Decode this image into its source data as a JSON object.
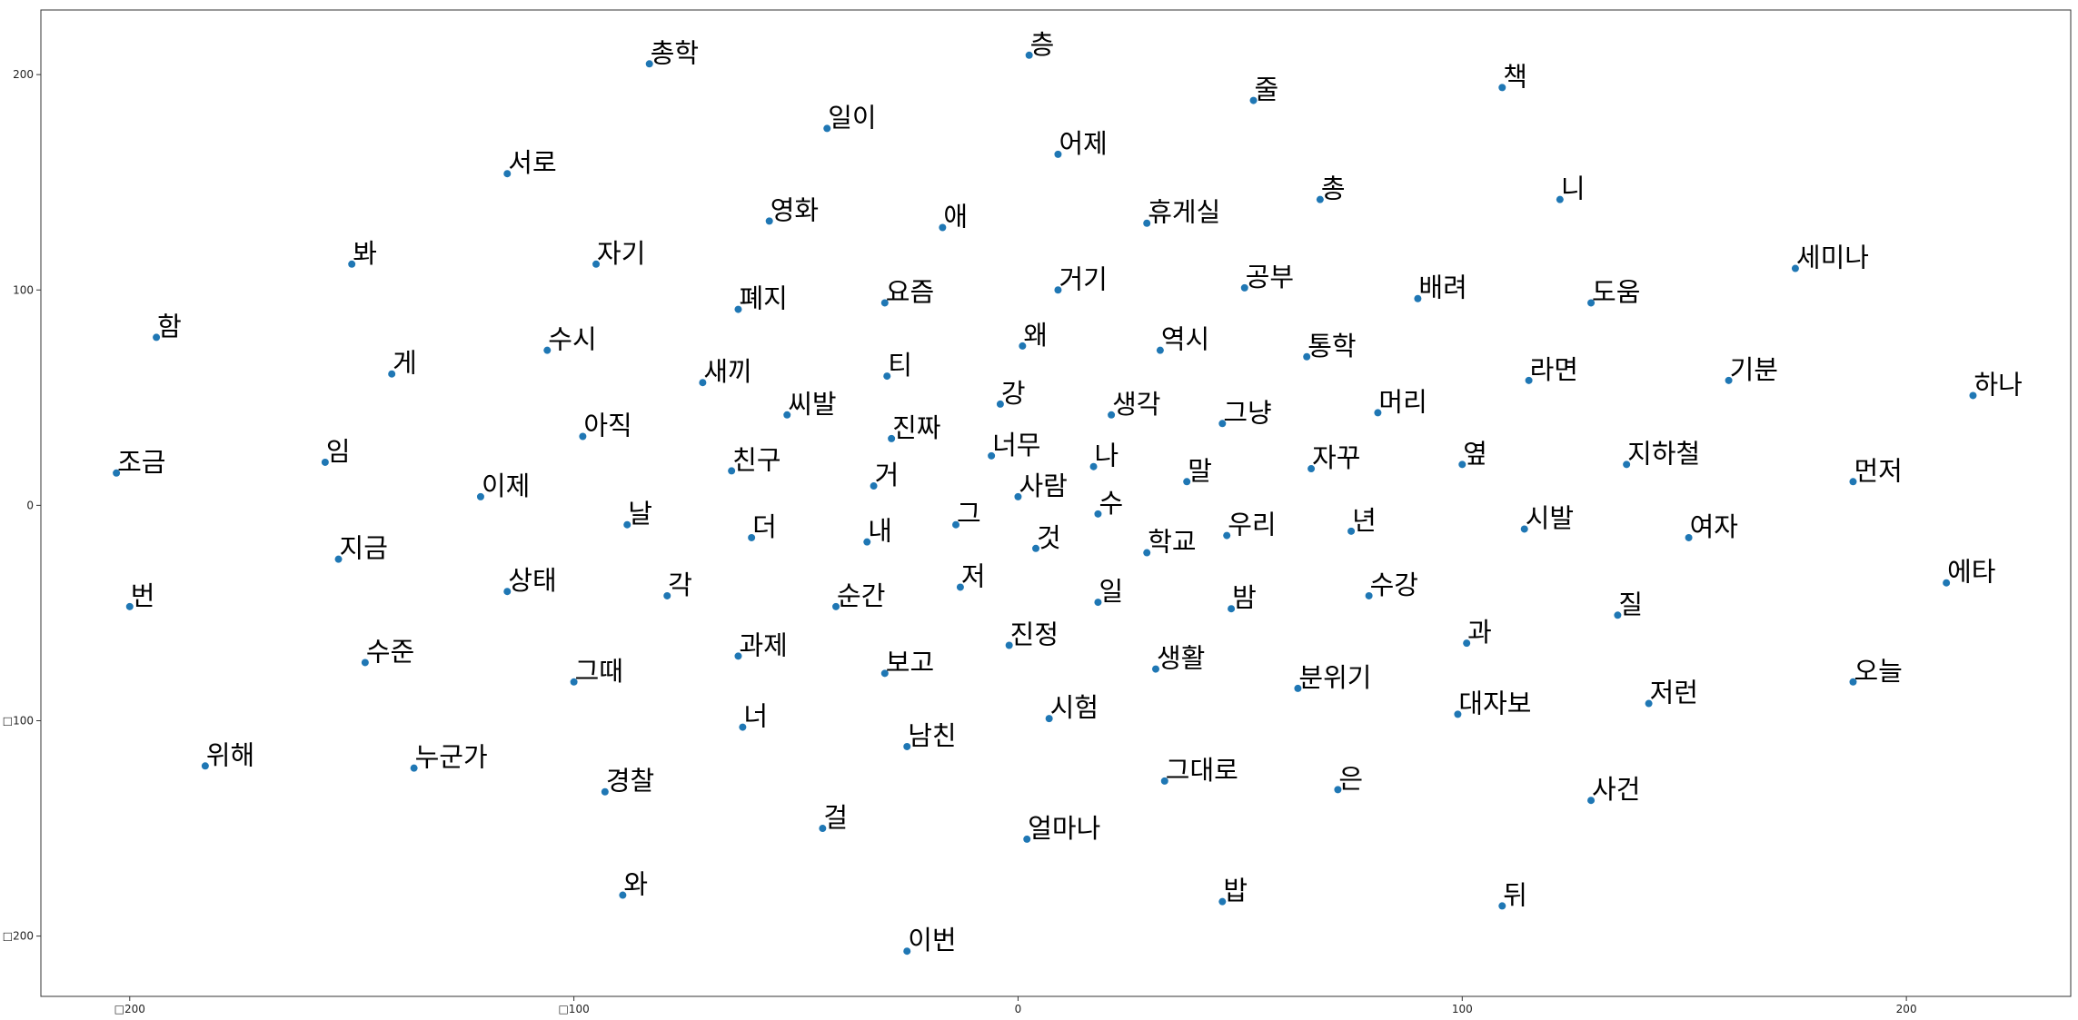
{
  "chart_data": {
    "type": "scatter",
    "title": "",
    "xlabel": "",
    "ylabel": "",
    "xlim": [
      -220,
      237
    ],
    "ylim": [
      -228,
      230
    ],
    "grid": false,
    "point_color": "#1f77b4",
    "x_ticks": [
      {
        "value": -200,
        "label": "□200"
      },
      {
        "value": -100,
        "label": "□100"
      },
      {
        "value": 0,
        "label": "0"
      },
      {
        "value": 100,
        "label": "100"
      },
      {
        "value": 200,
        "label": "200"
      }
    ],
    "y_ticks": [
      {
        "value": 200,
        "label": "200"
      },
      {
        "value": 100,
        "label": "100"
      },
      {
        "value": 0,
        "label": "0"
      },
      {
        "value": -100,
        "label": "□100"
      },
      {
        "value": -200,
        "label": "□200"
      }
    ],
    "points": [
      {
        "label": "층",
        "x": 2.5,
        "y": 209
      },
      {
        "label": "총학",
        "x": -83,
        "y": 205
      },
      {
        "label": "책",
        "x": 109,
        "y": 194
      },
      {
        "label": "줄",
        "x": 53,
        "y": 188
      },
      {
        "label": "일이",
        "x": -43,
        "y": 175
      },
      {
        "label": "어제",
        "x": 9,
        "y": 163
      },
      {
        "label": "서로",
        "x": -115,
        "y": 154
      },
      {
        "label": "총",
        "x": 68,
        "y": 142
      },
      {
        "label": "니",
        "x": 122,
        "y": 142
      },
      {
        "label": "영화",
        "x": -56,
        "y": 132
      },
      {
        "label": "애",
        "x": -17,
        "y": 129
      },
      {
        "label": "휴게실",
        "x": 29,
        "y": 131
      },
      {
        "label": "봐",
        "x": -150,
        "y": 112
      },
      {
        "label": "자기",
        "x": -95,
        "y": 112
      },
      {
        "label": "세미나",
        "x": 175,
        "y": 110
      },
      {
        "label": "거기",
        "x": 9,
        "y": 100
      },
      {
        "label": "공부",
        "x": 51,
        "y": 101
      },
      {
        "label": "배려",
        "x": 90,
        "y": 96
      },
      {
        "label": "폐지",
        "x": -63,
        "y": 91
      },
      {
        "label": "요즘",
        "x": -30,
        "y": 94
      },
      {
        "label": "도움",
        "x": 129,
        "y": 94
      },
      {
        "label": "함",
        "x": -194,
        "y": 78
      },
      {
        "label": "수시",
        "x": -106,
        "y": 72
      },
      {
        "label": "왜",
        "x": 1,
        "y": 74
      },
      {
        "label": "역시",
        "x": 32,
        "y": 72
      },
      {
        "label": "통학",
        "x": 65,
        "y": 69
      },
      {
        "label": "게",
        "x": -141,
        "y": 61
      },
      {
        "label": "티",
        "x": -29.5,
        "y": 60
      },
      {
        "label": "라면",
        "x": 115,
        "y": 58
      },
      {
        "label": "기분",
        "x": 160,
        "y": 58
      },
      {
        "label": "새끼",
        "x": -71,
        "y": 57
      },
      {
        "label": "하나",
        "x": 215,
        "y": 51
      },
      {
        "label": "강",
        "x": -4,
        "y": 47
      },
      {
        "label": "씨발",
        "x": -52,
        "y": 42
      },
      {
        "label": "생각",
        "x": 21,
        "y": 42
      },
      {
        "label": "그냥",
        "x": 46,
        "y": 38
      },
      {
        "label": "머리",
        "x": 81,
        "y": 43
      },
      {
        "label": "아직",
        "x": -98,
        "y": 32
      },
      {
        "label": "진짜",
        "x": -28.5,
        "y": 31
      },
      {
        "label": "너무",
        "x": -6,
        "y": 23
      },
      {
        "label": "조금",
        "x": -203,
        "y": 15
      },
      {
        "label": "임",
        "x": -156,
        "y": 20
      },
      {
        "label": "친구",
        "x": -64.5,
        "y": 16
      },
      {
        "label": "나",
        "x": 17,
        "y": 18
      },
      {
        "label": "자꾸",
        "x": 66,
        "y": 17
      },
      {
        "label": "옆",
        "x": 100,
        "y": 19
      },
      {
        "label": "지하철",
        "x": 137,
        "y": 19
      },
      {
        "label": "먼저",
        "x": 188,
        "y": 11
      },
      {
        "label": "거",
        "x": -32.5,
        "y": 9
      },
      {
        "label": "말",
        "x": 38,
        "y": 11
      },
      {
        "label": "이제",
        "x": -121,
        "y": 4
      },
      {
        "label": "사람",
        "x": 0,
        "y": 4
      },
      {
        "label": "수",
        "x": 18,
        "y": -4
      },
      {
        "label": "그",
        "x": -14,
        "y": -9
      },
      {
        "label": "날",
        "x": -88,
        "y": -9
      },
      {
        "label": "더",
        "x": -60,
        "y": -15
      },
      {
        "label": "내",
        "x": -34,
        "y": -17
      },
      {
        "label": "것",
        "x": 4,
        "y": -20
      },
      {
        "label": "년",
        "x": 75,
        "y": -12
      },
      {
        "label": "시발",
        "x": 114,
        "y": -11
      },
      {
        "label": "우리",
        "x": 47,
        "y": -14
      },
      {
        "label": "여자",
        "x": 151,
        "y": -15
      },
      {
        "label": "학교",
        "x": 29,
        "y": -22
      },
      {
        "label": "지금",
        "x": -153,
        "y": -25
      },
      {
        "label": "에타",
        "x": 209,
        "y": -36
      },
      {
        "label": "상태",
        "x": -115,
        "y": -40
      },
      {
        "label": "각",
        "x": -79,
        "y": -42
      },
      {
        "label": "저",
        "x": -13,
        "y": -38
      },
      {
        "label": "수강",
        "x": 79,
        "y": -42
      },
      {
        "label": "순간",
        "x": -41,
        "y": -47
      },
      {
        "label": "일",
        "x": 18,
        "y": -45
      },
      {
        "label": "밤",
        "x": 48,
        "y": -48
      },
      {
        "label": "번",
        "x": -200,
        "y": -47
      },
      {
        "label": "질",
        "x": 135,
        "y": -51
      },
      {
        "label": "과",
        "x": 101,
        "y": -64
      },
      {
        "label": "진정",
        "x": -2,
        "y": -65
      },
      {
        "label": "과제",
        "x": -63,
        "y": -70
      },
      {
        "label": "수준",
        "x": -147,
        "y": -73
      },
      {
        "label": "보고",
        "x": -30,
        "y": -78
      },
      {
        "label": "생활",
        "x": 31,
        "y": -76
      },
      {
        "label": "그때",
        "x": -100,
        "y": -82
      },
      {
        "label": "분위기",
        "x": 63,
        "y": -85
      },
      {
        "label": "오늘",
        "x": 188,
        "y": -82
      },
      {
        "label": "저런",
        "x": 142,
        "y": -92
      },
      {
        "label": "대자보",
        "x": 99,
        "y": -97
      },
      {
        "label": "시험",
        "x": 7,
        "y": -99
      },
      {
        "label": "너",
        "x": -62,
        "y": -103
      },
      {
        "label": "남친",
        "x": -25,
        "y": -112
      },
      {
        "label": "위해",
        "x": -183,
        "y": -121
      },
      {
        "label": "누군가",
        "x": -136,
        "y": -122
      },
      {
        "label": "그대로",
        "x": 33,
        "y": -128
      },
      {
        "label": "은",
        "x": 72,
        "y": -132
      },
      {
        "label": "경찰",
        "x": -93,
        "y": -133
      },
      {
        "label": "사건",
        "x": 129,
        "y": -137
      },
      {
        "label": "걸",
        "x": -44,
        "y": -150
      },
      {
        "label": "얼마나",
        "x": 2,
        "y": -155
      },
      {
        "label": "와",
        "x": -89,
        "y": -181
      },
      {
        "label": "밥",
        "x": 46,
        "y": -184
      },
      {
        "label": "뒤",
        "x": 109,
        "y": -186
      },
      {
        "label": "이번",
        "x": -25,
        "y": -207
      }
    ]
  }
}
